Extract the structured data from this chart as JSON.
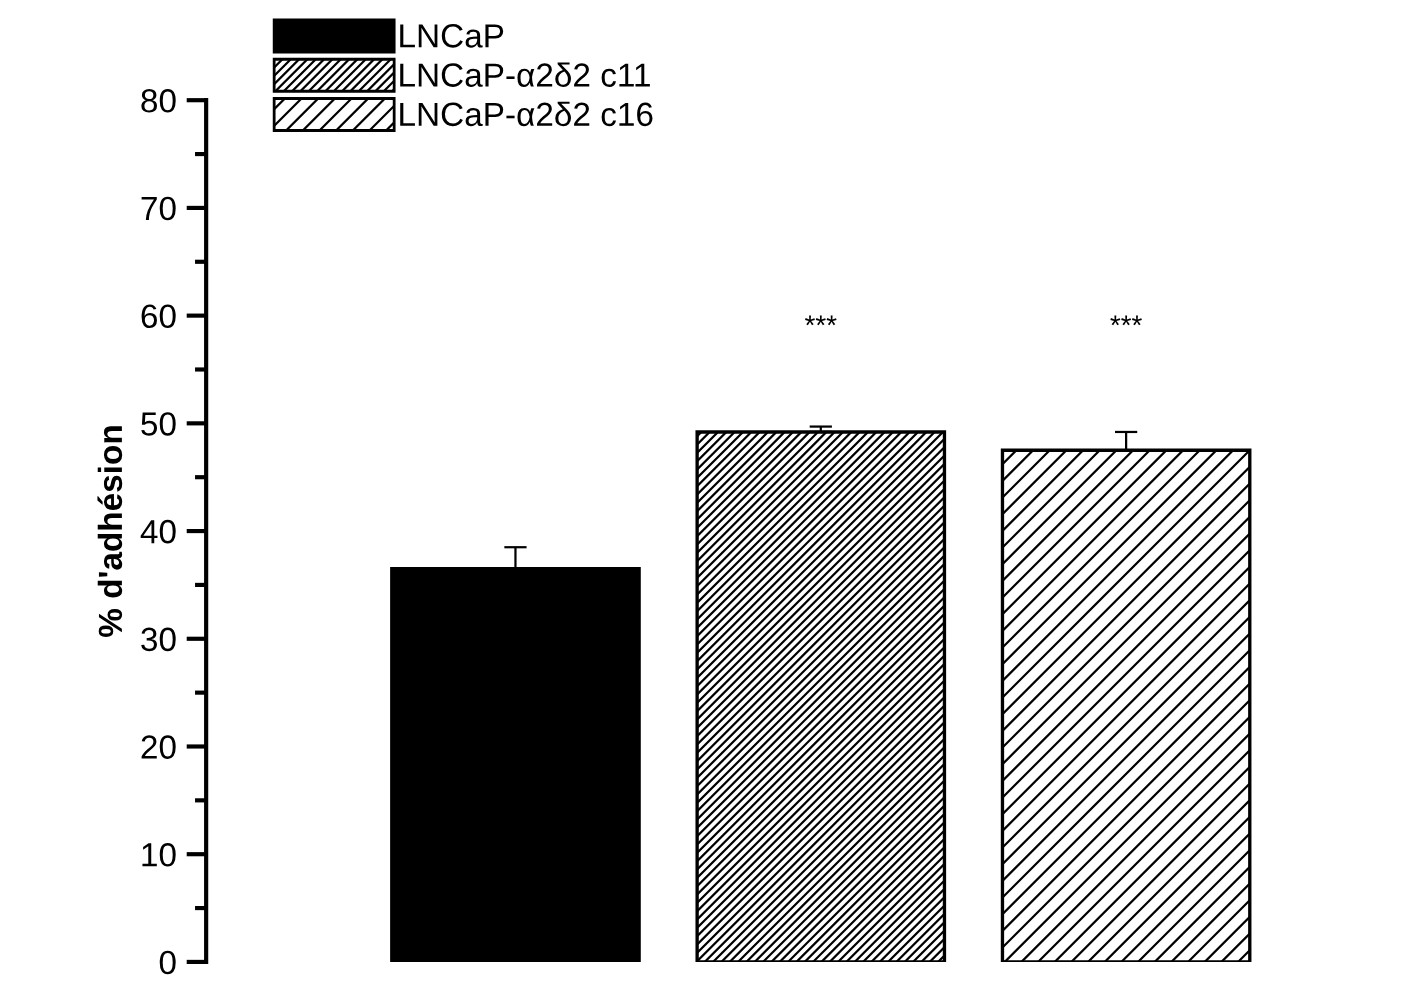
{
  "chart_data": {
    "type": "bar",
    "ylabel": "% d'adhésion",
    "categories": [
      null
    ],
    "series": [
      {
        "name": "LNCaP",
        "color": "#000000",
        "values": [
          36.5
        ],
        "errors": [
          2
        ]
      },
      {
        "name": "LNCaP-α2δ2 c11",
        "color": "#000000",
        "values": [
          49.2
        ],
        "errors": [
          0.5
        ]
      },
      {
        "name": "LNCaP-α2δ2 c16",
        "color": "#000000",
        "values": [
          47.5
        ],
        "errors": [
          1.7
        ]
      }
    ],
    "ylim": [
      0,
      80
    ],
    "yticks": [
      0,
      10,
      20,
      30,
      40,
      50,
      60,
      70,
      80
    ],
    "grid": false,
    "legend": "top left",
    "annotations": [
      "***",
      "***"
    ]
  }
}
